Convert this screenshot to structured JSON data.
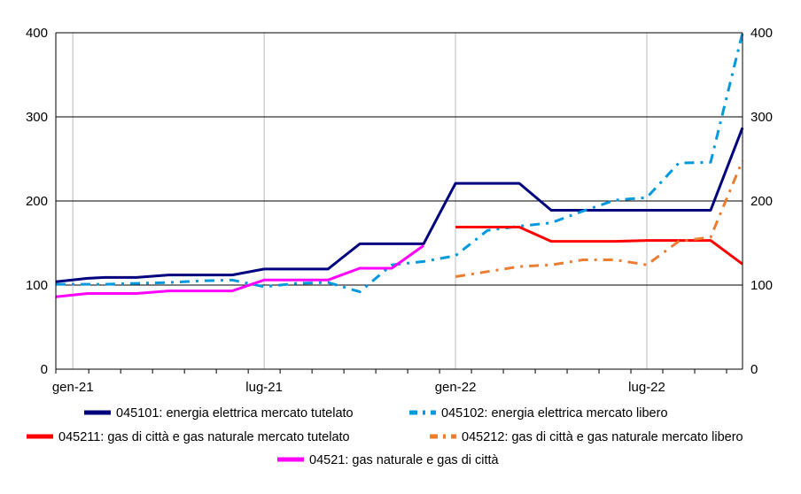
{
  "chart_data": {
    "type": "line",
    "x": [
      "2021-01",
      "2021-02",
      "2021-03",
      "2021-04",
      "2021-05",
      "2021-06",
      "2021-07",
      "2021-08",
      "2021-09",
      "2021-10",
      "2021-11",
      "2021-12",
      "2022-01",
      "2022-02",
      "2022-03",
      "2022-04",
      "2022-05",
      "2022-06",
      "2022-07",
      "2022-08",
      "2022-09",
      "2022-10"
    ],
    "x_tick_labels": [
      {
        "x": "2021-01",
        "label": "gen-21"
      },
      {
        "x": "2021-07",
        "label": "lug-21"
      },
      {
        "x": "2022-01",
        "label": "gen-22"
      },
      {
        "x": "2022-07",
        "label": "lug-22"
      }
    ],
    "x_range": [
      "2020-12-15",
      "2022-10-01"
    ],
    "ylim": [
      0,
      400
    ],
    "yticks": [
      0,
      100,
      200,
      300,
      400
    ],
    "grid": {
      "horizontal": true,
      "vertical": true
    },
    "secondary_axis": true,
    "legend_position": "bottom",
    "series": [
      {
        "name": "045101: energia elettrica mercato tutelato",
        "color": "#00007F",
        "style": "solid",
        "x": [
          "2020-12-15",
          "2021-01-15",
          "2021-02",
          "2021-03",
          "2021-04",
          "2021-05",
          "2021-06",
          "2021-07",
          "2021-08",
          "2021-09",
          "2021-10",
          "2021-11",
          "2021-12",
          "2022-01",
          "2022-02",
          "2022-03",
          "2022-04",
          "2022-05",
          "2022-06",
          "2022-07",
          "2022-08",
          "2022-09",
          "2022-10"
        ],
        "values": [
          104,
          108,
          109,
          109,
          112,
          112,
          112,
          119,
          119,
          119,
          149,
          149,
          149,
          221,
          221,
          221,
          189,
          189,
          189,
          189,
          189,
          189,
          287
        ]
      },
      {
        "name": "045102: energia elettrica mercato libero",
        "color": "#0099DD",
        "style": "dashdot",
        "x": [
          "2020-12-15",
          "2021-01-15",
          "2021-02",
          "2021-03",
          "2021-04",
          "2021-05",
          "2021-06",
          "2021-07",
          "2021-08",
          "2021-09",
          "2021-10",
          "2021-11",
          "2021-12",
          "2022-01",
          "2022-02",
          "2022-03",
          "2022-04",
          "2022-05",
          "2022-06",
          "2022-07",
          "2022-08",
          "2022-09",
          "2022-10"
        ],
        "values": [
          101,
          101,
          101,
          102,
          103,
          105,
          106,
          98,
          102,
          103,
          92,
          124,
          128,
          135,
          165,
          170,
          174,
          188,
          201,
          204,
          245,
          246,
          400
        ]
      },
      {
        "name": "045211: gas di città e gas naturale mercato tutelato",
        "color": "#FF0000",
        "style": "solid",
        "x": [
          "2022-01",
          "2022-02",
          "2022-03",
          "2022-04",
          "2022-05",
          "2022-06",
          "2022-07",
          "2022-08",
          "2022-09",
          "2022-10"
        ],
        "values": [
          169,
          169,
          169,
          152,
          152,
          152,
          153,
          153,
          153,
          125
        ]
      },
      {
        "name": "045212: gas di città e gas naturale mercato libero",
        "color": "#ED7D31",
        "style": "dashdot",
        "x": [
          "2022-01",
          "2022-02",
          "2022-03",
          "2022-04",
          "2022-05",
          "2022-06",
          "2022-07",
          "2022-08",
          "2022-09",
          "2022-10"
        ],
        "values": [
          110,
          116,
          122,
          124,
          130,
          130,
          124,
          152,
          157,
          248
        ]
      },
      {
        "name": "04521: gas naturale e gas di città",
        "color": "#FF00FF",
        "style": "solid",
        "x": [
          "2020-12-15",
          "2021-01-15",
          "2021-02",
          "2021-03",
          "2021-04",
          "2021-05",
          "2021-06",
          "2021-07",
          "2021-08",
          "2021-09",
          "2021-10",
          "2021-11",
          "2021-12"
        ],
        "values": [
          86,
          90,
          90,
          90,
          93,
          93,
          93,
          106,
          106,
          106,
          120,
          120,
          147
        ]
      }
    ]
  }
}
